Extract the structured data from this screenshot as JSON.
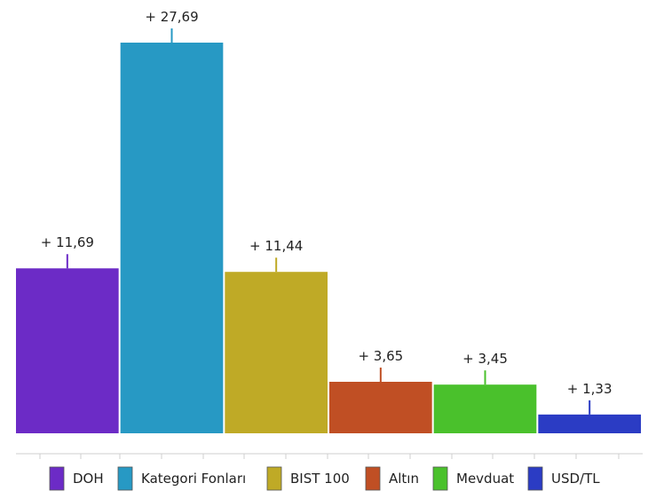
{
  "chart_data": {
    "type": "bar",
    "categories": [
      "DOH",
      "Kategori Fonları",
      "BIST 100",
      "Altın",
      "Mevduat",
      "USD/TL"
    ],
    "values": [
      11.69,
      27.69,
      11.44,
      3.65,
      3.45,
      1.33
    ],
    "value_labels": [
      "+ 11,69",
      "+ 27,69",
      "+ 11,44",
      "+ 3,65",
      "+ 3,45",
      "+ 1,33"
    ],
    "colors": [
      "#6c2bc6",
      "#2799c4",
      "#bfaa26",
      "#c04f24",
      "#4ac12c",
      "#2b3cc4"
    ],
    "ylim": [
      0,
      27.69
    ],
    "grid": false,
    "legend": "bottom"
  }
}
